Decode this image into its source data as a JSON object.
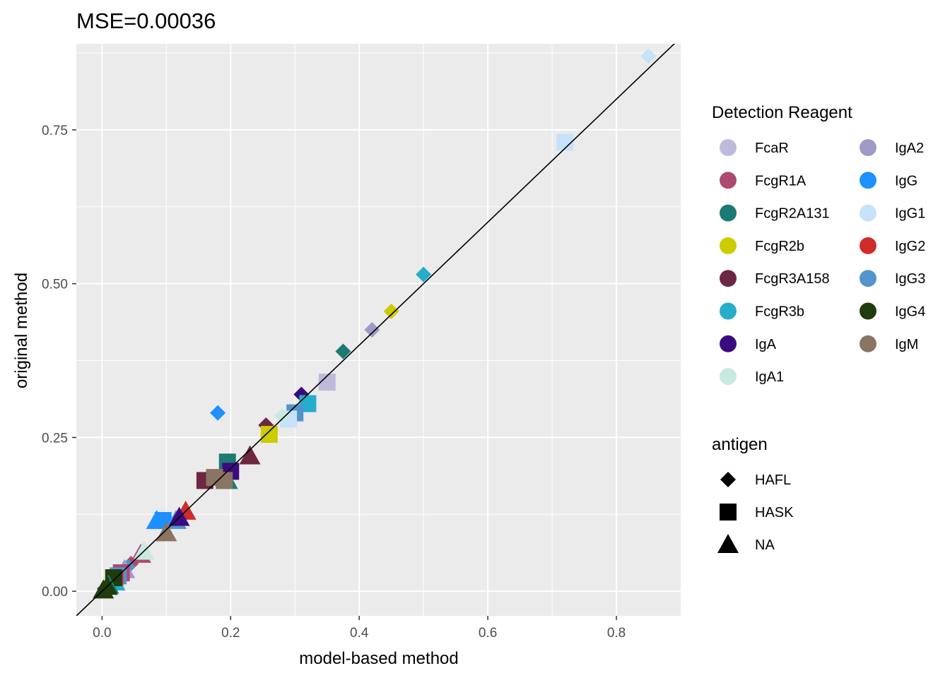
{
  "chart_data": {
    "type": "scatter",
    "title": "MSE=0.00036",
    "xlabel": "model-based method",
    "ylabel": "original method",
    "xlim": [
      -0.04,
      0.9
    ],
    "ylim": [
      -0.04,
      0.89
    ],
    "x_ticks": [
      "0.0",
      "0.2",
      "0.4",
      "0.6",
      "0.8"
    ],
    "y_ticks": [
      "0.00",
      "0.25",
      "0.50",
      "0.75"
    ],
    "x_tick_values": [
      0.0,
      0.2,
      0.4,
      0.6,
      0.8
    ],
    "y_tick_values": [
      0.0,
      0.25,
      0.5,
      0.75
    ],
    "grid": true,
    "panel_background": "#ebebeb",
    "reference_line": {
      "slope": 1,
      "intercept": 0,
      "color": "#000000"
    },
    "legend_placement": "right",
    "color_legend": {
      "title": "Detection Reagent",
      "entries": [
        {
          "name": "FcaR",
          "color": "#bebada"
        },
        {
          "name": "FcgR1A",
          "color": "#ad4a70"
        },
        {
          "name": "FcgR2A131",
          "color": "#1b7a72"
        },
        {
          "name": "FcgR2b",
          "color": "#cccc00"
        },
        {
          "name": "FcgR3A158",
          "color": "#6e2740"
        },
        {
          "name": "FcgR3b",
          "color": "#24aecb"
        },
        {
          "name": "IgA",
          "color": "#3c0a80"
        },
        {
          "name": "IgA1",
          "color": "#c7e9e0"
        },
        {
          "name": "IgA2",
          "color": "#9e9ac8"
        },
        {
          "name": "IgG",
          "color": "#1e90ff"
        },
        {
          "name": "IgG1",
          "color": "#c6e2fb"
        },
        {
          "name": "IgG2",
          "color": "#d02c2c"
        },
        {
          "name": "IgG3",
          "color": "#5294cb"
        },
        {
          "name": "IgG4",
          "color": "#203c0c"
        },
        {
          "name": "IgM",
          "color": "#8a7462"
        }
      ]
    },
    "shape_legend": {
      "title": "antigen",
      "entries": [
        {
          "name": "HAFL",
          "shape": "diamond"
        },
        {
          "name": "HASK",
          "shape": "square"
        },
        {
          "name": "NA",
          "shape": "triangle"
        }
      ]
    },
    "points": [
      {
        "x": 0.85,
        "y": 0.87,
        "reagent": "IgG1",
        "antigen": "HAFL"
      },
      {
        "x": 0.72,
        "y": 0.73,
        "reagent": "IgG1",
        "antigen": "HASK"
      },
      {
        "x": 0.5,
        "y": 0.515,
        "reagent": "FcgR3b",
        "antigen": "HAFL"
      },
      {
        "x": 0.45,
        "y": 0.455,
        "reagent": "FcgR2b",
        "antigen": "HAFL"
      },
      {
        "x": 0.42,
        "y": 0.425,
        "reagent": "IgA2",
        "antigen": "HAFL"
      },
      {
        "x": 0.375,
        "y": 0.39,
        "reagent": "FcgR2A131",
        "antigen": "HAFL"
      },
      {
        "x": 0.35,
        "y": 0.34,
        "reagent": "FcaR",
        "antigen": "HASK"
      },
      {
        "x": 0.31,
        "y": 0.32,
        "reagent": "IgA",
        "antigen": "HAFL"
      },
      {
        "x": 0.32,
        "y": 0.305,
        "reagent": "FcgR3b",
        "antigen": "HASK"
      },
      {
        "x": 0.3,
        "y": 0.29,
        "reagent": "IgG3",
        "antigen": "HASK"
      },
      {
        "x": 0.29,
        "y": 0.28,
        "reagent": "IgG1",
        "antigen": "HASK"
      },
      {
        "x": 0.28,
        "y": 0.285,
        "reagent": "IgA1",
        "antigen": "HAFL"
      },
      {
        "x": 0.18,
        "y": 0.29,
        "reagent": "IgG",
        "antigen": "HAFL"
      },
      {
        "x": 0.255,
        "y": 0.27,
        "reagent": "FcgR3A158",
        "antigen": "HAFL"
      },
      {
        "x": 0.26,
        "y": 0.255,
        "reagent": "FcgR2b",
        "antigen": "HASK"
      },
      {
        "x": 0.23,
        "y": 0.22,
        "reagent": "FcgR3A158",
        "antigen": "NA"
      },
      {
        "x": 0.195,
        "y": 0.21,
        "reagent": "FcgR2A131",
        "antigen": "HASK"
      },
      {
        "x": 0.2,
        "y": 0.195,
        "reagent": "IgA",
        "antigen": "HASK"
      },
      {
        "x": 0.195,
        "y": 0.18,
        "reagent": "FcgR2A131",
        "antigen": "NA"
      },
      {
        "x": 0.16,
        "y": 0.18,
        "reagent": "FcgR3A158",
        "antigen": "HASK"
      },
      {
        "x": 0.175,
        "y": 0.185,
        "reagent": "IgM",
        "antigen": "HASK"
      },
      {
        "x": 0.19,
        "y": 0.18,
        "reagent": "IgM",
        "antigen": "HASK"
      },
      {
        "x": 0.13,
        "y": 0.13,
        "reagent": "IgG2",
        "antigen": "NA"
      },
      {
        "x": 0.085,
        "y": 0.115,
        "reagent": "IgG",
        "antigen": "NA"
      },
      {
        "x": 0.095,
        "y": 0.115,
        "reagent": "IgG",
        "antigen": "HASK"
      },
      {
        "x": 0.115,
        "y": 0.115,
        "reagent": "IgG3",
        "antigen": "NA"
      },
      {
        "x": 0.12,
        "y": 0.12,
        "reagent": "IgA",
        "antigen": "NA"
      },
      {
        "x": 0.1,
        "y": 0.095,
        "reagent": "IgM",
        "antigen": "NA"
      },
      {
        "x": 0.06,
        "y": 0.06,
        "reagent": "FcgR1A",
        "antigen": "NA"
      },
      {
        "x": 0.065,
        "y": 0.065,
        "reagent": "IgA1",
        "antigen": "NA"
      },
      {
        "x": 0.045,
        "y": 0.045,
        "reagent": "FcgR1A",
        "antigen": "HAFL"
      },
      {
        "x": 0.04,
        "y": 0.04,
        "reagent": "IgG3",
        "antigen": "HAFL"
      },
      {
        "x": 0.035,
        "y": 0.035,
        "reagent": "IgA2",
        "antigen": "NA"
      },
      {
        "x": 0.03,
        "y": 0.03,
        "reagent": "FcgR1A",
        "antigen": "HASK"
      },
      {
        "x": 0.025,
        "y": 0.025,
        "reagent": "IgG3",
        "antigen": "HASK"
      },
      {
        "x": 0.02,
        "y": 0.02,
        "reagent": "IgG2",
        "antigen": "HASK"
      },
      {
        "x": 0.02,
        "y": 0.015,
        "reagent": "FcgR3b",
        "antigen": "NA"
      },
      {
        "x": 0.018,
        "y": 0.022,
        "reagent": "IgG4",
        "antigen": "HASK"
      },
      {
        "x": 0.01,
        "y": 0.01,
        "reagent": "FcgR2A131",
        "antigen": "NA"
      },
      {
        "x": 0.008,
        "y": 0.008,
        "reagent": "IgG4",
        "antigen": "NA"
      },
      {
        "x": 0.004,
        "y": 0.004,
        "reagent": "IgG4",
        "antigen": "HAFL"
      },
      {
        "x": 0.002,
        "y": 0.002,
        "reagent": "IgG4",
        "antigen": "NA"
      }
    ]
  }
}
